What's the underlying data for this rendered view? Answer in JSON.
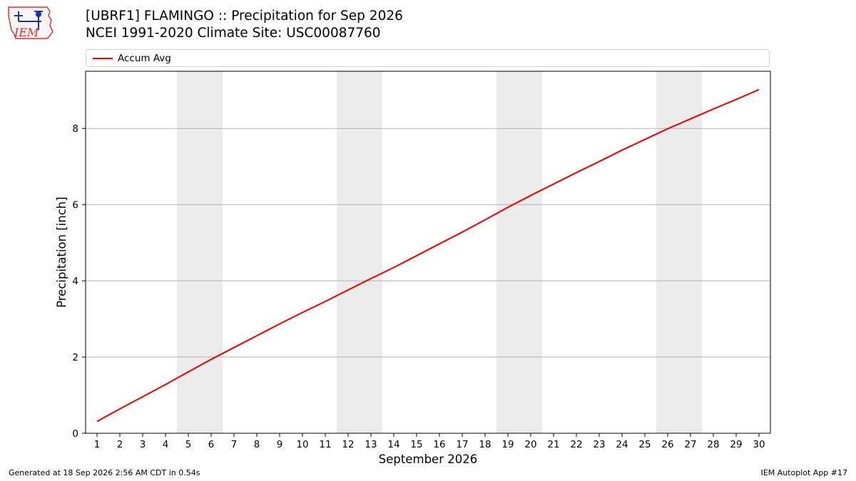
{
  "header": {
    "title_line1": "[UBRF1] FLAMINGO :: Precipitation for Sep 2026",
    "title_line2": "NCEI 1991-2020 Climate Site: USC00087760"
  },
  "logo": {
    "text": "IEM"
  },
  "footer": {
    "generated": "Generated at 18 Sep 2026 2:56 AM CDT in 0.54s",
    "app": "IEM Autoplot App #17"
  },
  "colors": {
    "line": "#ee0000",
    "weekend_band": "#ececec",
    "grid": "#b0b0b0"
  },
  "chart_data": {
    "type": "line",
    "xlabel": "September 2026",
    "ylabel": "Precipitation [inch]",
    "x_ticks": [
      "1",
      "2",
      "3",
      "4",
      "5",
      "6",
      "7",
      "8",
      "9",
      "10",
      "11",
      "12",
      "13",
      "14",
      "15",
      "16",
      "17",
      "18",
      "19",
      "20",
      "21",
      "22",
      "23",
      "24",
      "25",
      "26",
      "27",
      "28",
      "29",
      "30"
    ],
    "y_ticks": [
      "0",
      "2",
      "4",
      "6",
      "8"
    ],
    "xlim": [
      0.5,
      30.5
    ],
    "ylim": [
      0,
      9.5
    ],
    "grid": "horizontal",
    "legend": {
      "placement": "top",
      "entries": [
        "Accum Avg"
      ]
    },
    "weekend_days": [
      5,
      6,
      12,
      13,
      19,
      20,
      26,
      27
    ],
    "series": [
      {
        "name": "Accum Avg",
        "x": [
          1,
          2,
          3,
          4,
          5,
          6,
          7,
          8,
          9,
          10,
          11,
          12,
          13,
          14,
          15,
          16,
          17,
          18,
          19,
          20,
          21,
          22,
          23,
          24,
          25,
          26,
          27,
          28,
          29,
          30
        ],
        "values": [
          0.31,
          0.64,
          0.96,
          1.28,
          1.61,
          1.94,
          2.25,
          2.56,
          2.87,
          3.17,
          3.46,
          3.76,
          4.06,
          4.35,
          4.66,
          4.97,
          5.28,
          5.6,
          5.93,
          6.24,
          6.54,
          6.84,
          7.13,
          7.43,
          7.71,
          7.99,
          8.25,
          8.51,
          8.76,
          9.02
        ]
      }
    ]
  }
}
